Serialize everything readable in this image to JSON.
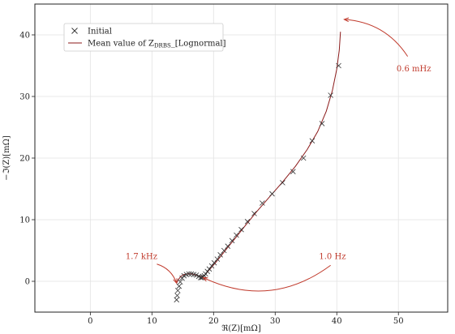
{
  "chart_data": {
    "type": "scatter",
    "title": "",
    "xlabel": "ℜ(Z)[mΩ]",
    "ylabel": "−ℑ(Z)[mΩ]",
    "xlim": [
      -9,
      58
    ],
    "ylim": [
      -5,
      45
    ],
    "xticks": [
      0,
      10,
      20,
      30,
      40,
      50
    ],
    "yticks": [
      0,
      10,
      20,
      30,
      40
    ],
    "grid": true,
    "legend_position": "top-left",
    "colors": {
      "initial": "#333333",
      "mean": "#8b1a1a",
      "annotation": "#c0392b"
    },
    "series": [
      {
        "name": "Initial",
        "marker": "x",
        "x": [
          14.0,
          14.1,
          14.2,
          14.4,
          14.6,
          14.9,
          15.2,
          15.6,
          16.0,
          16.4,
          16.8,
          17.2,
          17.6,
          17.9,
          18.1,
          18.3,
          18.5,
          18.7,
          19.0,
          19.3,
          19.7,
          20.1,
          20.6,
          21.1,
          21.7,
          22.3,
          23.0,
          23.7,
          24.5,
          25.5,
          26.6,
          27.9,
          29.5,
          31.2,
          32.9,
          34.6,
          36.0,
          37.6,
          39.0,
          40.3
        ],
        "y": [
          -3.0,
          -2.3,
          -1.5,
          -0.8,
          -0.1,
          0.5,
          0.9,
          1.1,
          1.2,
          1.2,
          1.1,
          1.0,
          0.8,
          0.6,
          0.6,
          0.7,
          0.9,
          1.2,
          1.6,
          2.0,
          2.5,
          3.0,
          3.6,
          4.3,
          5.0,
          5.7,
          6.6,
          7.5,
          8.4,
          9.7,
          11.0,
          12.7,
          14.2,
          16.0,
          17.8,
          20.0,
          22.8,
          25.6,
          30.2,
          35.0
        ]
      },
      {
        "name": "Mean value of Z_DRBS_[Lognormal]",
        "type": "line",
        "x": [
          14.0,
          14.3,
          14.7,
          15.2,
          15.8,
          16.5,
          17.2,
          17.8,
          18.2,
          18.6,
          19.0,
          19.6,
          20.3,
          21.2,
          22.3,
          23.6,
          25.2,
          27.0,
          29.0,
          31.2,
          33.3,
          35.2,
          36.9,
          38.3,
          39.3,
          40.0,
          40.4,
          40.6
        ],
        "y": [
          -0.3,
          0.3,
          0.8,
          1.1,
          1.2,
          1.2,
          1.0,
          0.8,
          0.8,
          1.0,
          1.5,
          2.2,
          3.0,
          4.1,
          5.5,
          7.1,
          9.1,
          11.3,
          13.6,
          16.1,
          18.7,
          21.4,
          24.3,
          27.6,
          31.0,
          34.5,
          37.5,
          40.5
        ]
      }
    ],
    "legend": {
      "initial_label": "Initial",
      "mean_label_prefix": "Mean value of Z",
      "mean_label_sub": "DRBS",
      "mean_label_suffix": "_[Lognormal]"
    },
    "annotations": [
      {
        "text": "0.6 mHz",
        "label_x": 52.5,
        "label_y": 34.5,
        "arrow_from": [
          51.5,
          36.5
        ],
        "arrow_to": [
          41.2,
          42.5
        ],
        "curve": 0.25
      },
      {
        "text": "1.7 kHz",
        "label_x": 8.3,
        "label_y": 4.0,
        "arrow_from": [
          10.8,
          2.8
        ],
        "arrow_to": [
          14.0,
          -0.3
        ],
        "curve": -0.25
      },
      {
        "text": "1.0 Hz",
        "label_x": 39.3,
        "label_y": 4.0,
        "arrow_from": [
          39.0,
          2.6
        ],
        "arrow_to": [
          18.3,
          0.6
        ],
        "curve": -0.3
      }
    ]
  }
}
